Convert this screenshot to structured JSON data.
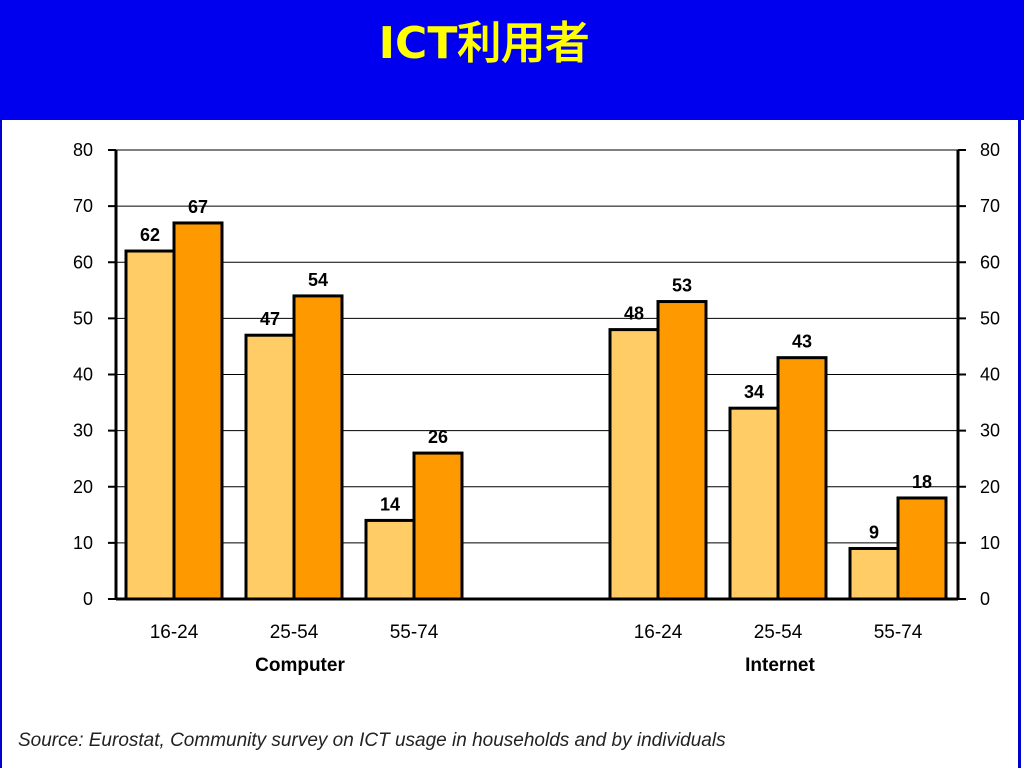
{
  "title": "ICT利用者",
  "source": "Source: Eurostat, Community survey on ICT usage in households and by individuals",
  "colors": {
    "header_bg": "#0000ee",
    "title_text": "#ffff00",
    "series_light": "#ffcc66",
    "series_dark": "#ff9900"
  },
  "chart_data": {
    "type": "bar",
    "ylim": [
      0,
      80
    ],
    "yticks": [
      0,
      10,
      20,
      30,
      40,
      50,
      60,
      70,
      80
    ],
    "grid": true,
    "legend": "none",
    "groups": [
      {
        "label": "Computer",
        "categories": [
          "16-24",
          "25-54",
          "55-74"
        ],
        "series": [
          {
            "values": [
              62,
              47,
              14
            ]
          },
          {
            "values": [
              67,
              54,
              26
            ]
          }
        ]
      },
      {
        "label": "Internet",
        "categories": [
          "16-24",
          "25-54",
          "55-74"
        ],
        "series": [
          {
            "values": [
              48,
              34,
              9
            ]
          },
          {
            "values": [
              53,
              43,
              18
            ]
          }
        ]
      }
    ]
  }
}
